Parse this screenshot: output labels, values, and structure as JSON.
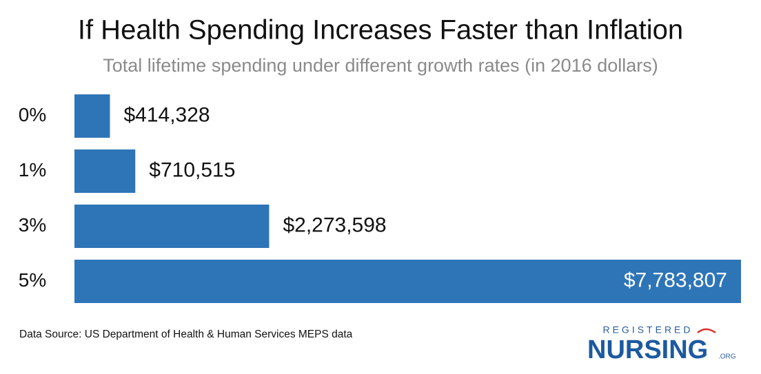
{
  "chart_data": {
    "type": "bar",
    "orientation": "horizontal",
    "title": "If Health Spending Increases Faster than Inflation",
    "subtitle": "Total lifetime spending under different growth rates (in 2016 dollars)",
    "categories": [
      "0%",
      "1%",
      "3%",
      "5%"
    ],
    "values": [
      414328,
      710515,
      2273598,
      7783807
    ],
    "value_labels": [
      "$414,328",
      "$710,515",
      "$2,273,598",
      "$7,783,807"
    ],
    "color": "#2e75b8",
    "source": "Data Source: US Department of Health & Human Services MEPS data"
  },
  "logo": {
    "top": "REGISTERED",
    "main": "NURSING",
    "suffix": ".ORG"
  }
}
